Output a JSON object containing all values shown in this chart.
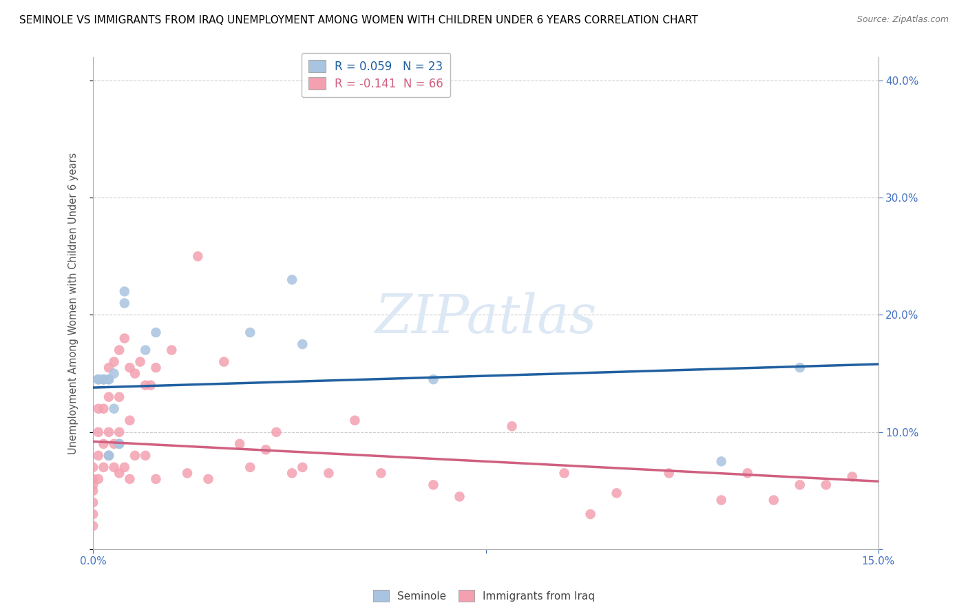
{
  "title": "SEMINOLE VS IMMIGRANTS FROM IRAQ UNEMPLOYMENT AMONG WOMEN WITH CHILDREN UNDER 6 YEARS CORRELATION CHART",
  "source": "Source: ZipAtlas.com",
  "ylabel": "Unemployment Among Women with Children Under 6 years",
  "xlim": [
    0.0,
    0.15
  ],
  "ylim": [
    0.0,
    0.42
  ],
  "ytick_values": [
    0.0,
    0.1,
    0.2,
    0.3,
    0.4
  ],
  "ytick_labels": [
    "",
    "10.0%",
    "20.0%",
    "30.0%",
    "40.0%"
  ],
  "seminole_R": 0.059,
  "seminole_N": 23,
  "iraq_R": -0.141,
  "iraq_N": 66,
  "seminole_color": "#a8c4e0",
  "iraq_color": "#f4a0b0",
  "seminole_line_color": "#2060a0",
  "iraq_line_color": "#d06080",
  "watermark_color": "#dde8f5",
  "seminole_x": [
    0.001,
    0.001,
    0.001,
    0.002,
    0.002,
    0.003,
    0.003,
    0.003,
    0.003,
    0.004,
    0.004,
    0.005,
    0.005,
    0.006,
    0.006,
    0.01,
    0.012,
    0.03,
    0.038,
    0.04,
    0.065,
    0.12,
    0.135
  ],
  "seminole_y": [
    0.145,
    0.145,
    0.145,
    0.145,
    0.145,
    0.145,
    0.145,
    0.08,
    0.08,
    0.15,
    0.12,
    0.09,
    0.09,
    0.22,
    0.21,
    0.17,
    0.185,
    0.185,
    0.23,
    0.175,
    0.145,
    0.075,
    0.155
  ],
  "iraq_x": [
    0.0,
    0.0,
    0.0,
    0.0,
    0.0,
    0.0,
    0.0,
    0.001,
    0.001,
    0.001,
    0.001,
    0.002,
    0.002,
    0.002,
    0.002,
    0.003,
    0.003,
    0.003,
    0.003,
    0.004,
    0.004,
    0.004,
    0.005,
    0.005,
    0.005,
    0.005,
    0.006,
    0.006,
    0.007,
    0.007,
    0.007,
    0.008,
    0.008,
    0.009,
    0.01,
    0.01,
    0.011,
    0.012,
    0.012,
    0.015,
    0.018,
    0.02,
    0.022,
    0.025,
    0.028,
    0.03,
    0.033,
    0.035,
    0.038,
    0.04,
    0.045,
    0.05,
    0.055,
    0.065,
    0.07,
    0.08,
    0.09,
    0.095,
    0.1,
    0.11,
    0.12,
    0.125,
    0.13,
    0.135,
    0.14,
    0.145
  ],
  "iraq_y": [
    0.07,
    0.06,
    0.055,
    0.05,
    0.04,
    0.03,
    0.02,
    0.12,
    0.1,
    0.08,
    0.06,
    0.145,
    0.12,
    0.09,
    0.07,
    0.155,
    0.13,
    0.1,
    0.08,
    0.16,
    0.09,
    0.07,
    0.17,
    0.13,
    0.1,
    0.065,
    0.18,
    0.07,
    0.155,
    0.11,
    0.06,
    0.15,
    0.08,
    0.16,
    0.14,
    0.08,
    0.14,
    0.155,
    0.06,
    0.17,
    0.065,
    0.25,
    0.06,
    0.16,
    0.09,
    0.07,
    0.085,
    0.1,
    0.065,
    0.07,
    0.065,
    0.11,
    0.065,
    0.055,
    0.045,
    0.105,
    0.065,
    0.03,
    0.048,
    0.065,
    0.042,
    0.065,
    0.042,
    0.055,
    0.055,
    0.062
  ],
  "trend_blue_x0": 0.0,
  "trend_blue_y0": 0.138,
  "trend_blue_x1": 0.15,
  "trend_blue_y1": 0.158,
  "trend_pink_x0": 0.0,
  "trend_pink_y0": 0.092,
  "trend_pink_x1": 0.15,
  "trend_pink_y1": 0.058
}
